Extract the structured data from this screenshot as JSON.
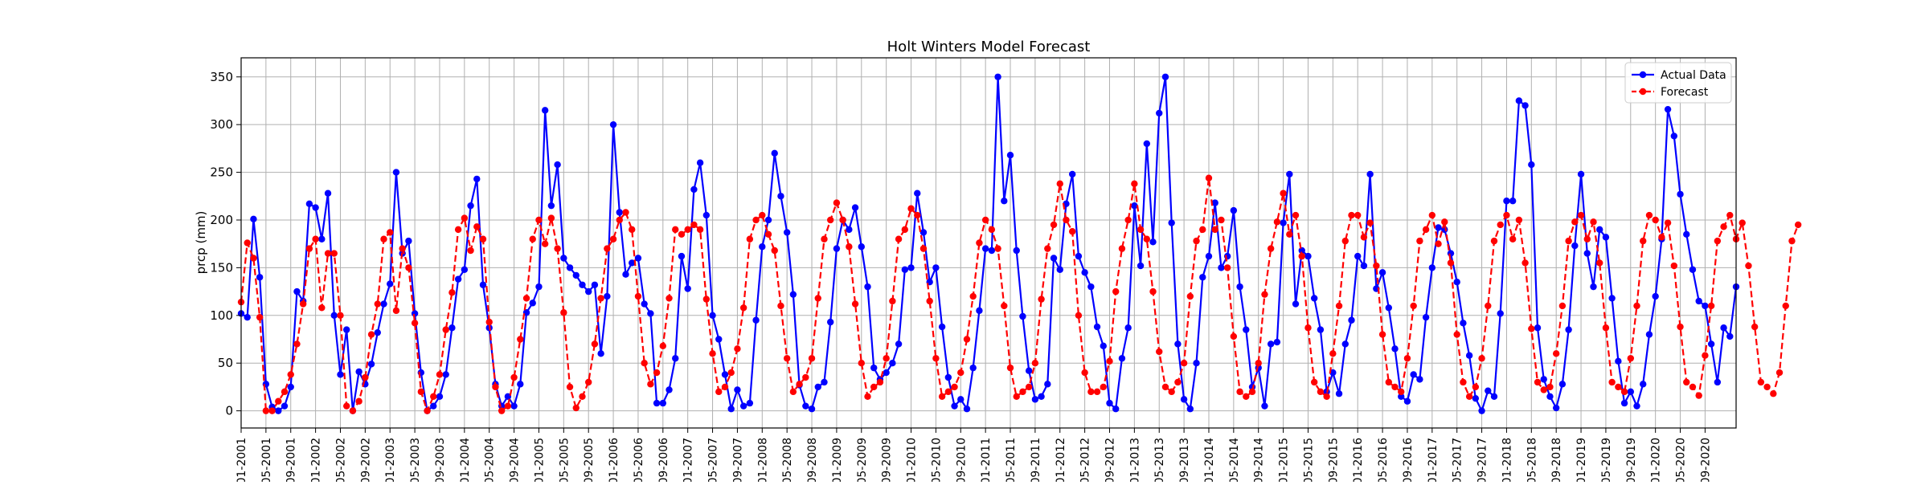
{
  "chart_data": {
    "type": "line",
    "title": "Holt Winters Model Forecast",
    "xlabel": "",
    "ylabel": "prcp (mm)",
    "x_start": "2001-01",
    "x_ticks": [
      "01-2001",
      "05-2001",
      "09-2001",
      "01-2002",
      "05-2002",
      "09-2002",
      "01-2003",
      "05-2003",
      "09-2003",
      "01-2004",
      "05-2004",
      "09-2004",
      "01-2005",
      "05-2005",
      "09-2005",
      "01-2006",
      "05-2006",
      "09-2006",
      "01-2007",
      "05-2007",
      "09-2007",
      "01-2008",
      "05-2008",
      "09-2008",
      "01-2009",
      "05-2009",
      "09-2009",
      "01-2010",
      "05-2010",
      "09-2010",
      "01-2011",
      "05-2011",
      "09-2011",
      "01-2012",
      "05-2012",
      "09-2012",
      "01-2013",
      "05-2013",
      "09-2013",
      "01-2014",
      "05-2014",
      "09-2014",
      "01-2015",
      "05-2015",
      "09-2015",
      "01-2016",
      "05-2016",
      "09-2016",
      "01-2017",
      "05-2017",
      "09-2017",
      "01-2018",
      "05-2018",
      "09-2018",
      "01-2019",
      "05-2019",
      "09-2019",
      "01-2020",
      "05-2020",
      "09-2020"
    ],
    "y_ticks": [
      0,
      50,
      100,
      150,
      200,
      250,
      300,
      350
    ],
    "ylim": [
      -18,
      370
    ],
    "grid": true,
    "legend_position": "top-right",
    "series": [
      {
        "name": "Actual Data",
        "color": "#0000ff",
        "line_style": "solid",
        "values": [
          102,
          98,
          201,
          140,
          28,
          4,
          0,
          5,
          25,
          125,
          115,
          217,
          213,
          180,
          228,
          100,
          38,
          85,
          0,
          41,
          28,
          49,
          82,
          112,
          133,
          250,
          165,
          178,
          102,
          40,
          0,
          5,
          15,
          38,
          87,
          138,
          148,
          215,
          243,
          132,
          87,
          28,
          5,
          15,
          5,
          28,
          103,
          113,
          130,
          315,
          215,
          258,
          160,
          150,
          142,
          132,
          125,
          132,
          60,
          120,
          300,
          208,
          143,
          155,
          160,
          112,
          102,
          8,
          8,
          22,
          55,
          162,
          128,
          232,
          260,
          205,
          100,
          75,
          38,
          2,
          22,
          5,
          8,
          95,
          172,
          200,
          270,
          225,
          187,
          122,
          27,
          5,
          2,
          25,
          30,
          93,
          170,
          200,
          190,
          213,
          172,
          130,
          45,
          33,
          40,
          50,
          70,
          148,
          150,
          228,
          187,
          135,
          150,
          88,
          35,
          5,
          12,
          2,
          45,
          105,
          170,
          168,
          350,
          220,
          268,
          168,
          99,
          42,
          12,
          15,
          28,
          160,
          148,
          217,
          248,
          162,
          145,
          130,
          88,
          68,
          8,
          2,
          55,
          87,
          215,
          152,
          280,
          177,
          312,
          350,
          197,
          70,
          12,
          2,
          50,
          140,
          162,
          218,
          150,
          162,
          210,
          130,
          85,
          25,
          45,
          5,
          70,
          72,
          197,
          248,
          112,
          168,
          162,
          118,
          85,
          20,
          40,
          18,
          70,
          95,
          162,
          152,
          248,
          128,
          145,
          108,
          65,
          15,
          10,
          38,
          33,
          98,
          150,
          192,
          190,
          165,
          135,
          92,
          58,
          13,
          0,
          21,
          15,
          102,
          220,
          220,
          325,
          320,
          258,
          87,
          33,
          15,
          3,
          28,
          85,
          173,
          248,
          165,
          130,
          190,
          182,
          118,
          52,
          8,
          20,
          5,
          28,
          80,
          120,
          180,
          316,
          288,
          227,
          185,
          148,
          115,
          110,
          70,
          30,
          87,
          78,
          130
        ]
      },
      {
        "name": "Forecast",
        "color": "#ff0000",
        "line_style": "dashed",
        "values": [
          114,
          176,
          160,
          98,
          0,
          0,
          10,
          20,
          38,
          70,
          112,
          170,
          180,
          108,
          165,
          165,
          100,
          5,
          0,
          10,
          35,
          80,
          112,
          180,
          187,
          105,
          170,
          150,
          92,
          20,
          0,
          15,
          38,
          85,
          124,
          190,
          202,
          168,
          193,
          180,
          93,
          25,
          0,
          5,
          35,
          75,
          118,
          180,
          200,
          175,
          202,
          170,
          103,
          25,
          3,
          15,
          30,
          70,
          118,
          170,
          180,
          200,
          208,
          190,
          120,
          50,
          28,
          40,
          68,
          118,
          190,
          185,
          190,
          195,
          190,
          117,
          60,
          20,
          25,
          40,
          65,
          108,
          180,
          200,
          205,
          185,
          168,
          110,
          55,
          20,
          28,
          35,
          55,
          118,
          180,
          200,
          218,
          200,
          172,
          112,
          50,
          15,
          25,
          30,
          55,
          115,
          180,
          190,
          212,
          205,
          170,
          115,
          55,
          15,
          20,
          25,
          40,
          75,
          120,
          176,
          200,
          190,
          170,
          110,
          45,
          15,
          20,
          25,
          50,
          117,
          170,
          195,
          238,
          200,
          188,
          100,
          40,
          20,
          20,
          25,
          52,
          125,
          170,
          200,
          238,
          190,
          180,
          125,
          62,
          25,
          20,
          30,
          50,
          120,
          178,
          190,
          244,
          190,
          200,
          150,
          78,
          20,
          15,
          20,
          50,
          122,
          170,
          198,
          228,
          185,
          205,
          162,
          87,
          30,
          20,
          15,
          60,
          110,
          178,
          205,
          205,
          182,
          197,
          152,
          80,
          30,
          25,
          20,
          55,
          110,
          178,
          190,
          205,
          175,
          198,
          155,
          80,
          30,
          15,
          25,
          55,
          110,
          178,
          195,
          205,
          180,
          200,
          155,
          86,
          30,
          22,
          25,
          60,
          110,
          178,
          198,
          205,
          180,
          198,
          155,
          87,
          30,
          25,
          20,
          55,
          110,
          178,
          205,
          200,
          182,
          197,
          152,
          88,
          30,
          25,
          16,
          58,
          110,
          178,
          193,
          205,
          180,
          197,
          152,
          88,
          30,
          25,
          18,
          40,
          110,
          178,
          195
        ]
      }
    ]
  }
}
